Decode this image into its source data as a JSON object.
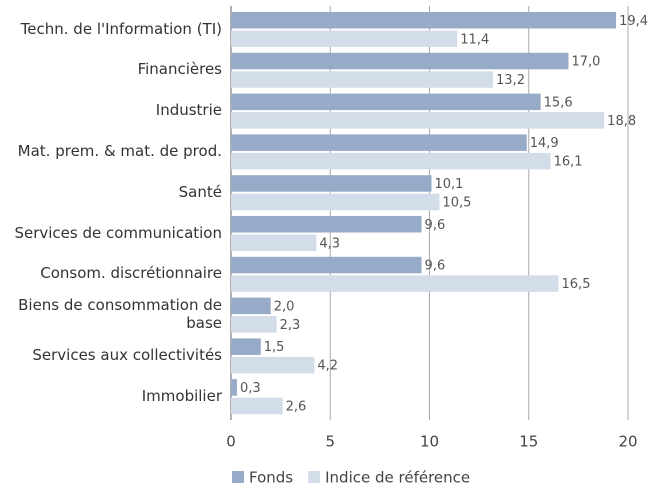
{
  "chart_data": {
    "type": "bar",
    "orientation": "horizontal",
    "categories": [
      "Techn. de l'Information (TI)",
      "Financières",
      "Industrie",
      "Mat. prem. & mat. de prod.",
      "Santé",
      "Services de communication",
      "Consom. discrétionnaire",
      "Biens de consommation de base",
      "Services aux collectivités",
      "Immobilier"
    ],
    "series": [
      {
        "name": "Fonds",
        "color": "#97abc8",
        "values": [
          19.4,
          17.0,
          15.6,
          14.9,
          10.1,
          9.6,
          9.6,
          2.0,
          1.5,
          0.3
        ],
        "value_labels": [
          "19,4",
          "17,0",
          "15,6",
          "14,9",
          "10,1",
          "9,6",
          "9,6",
          "2,0",
          "1,5",
          "0,3"
        ]
      },
      {
        "name": "Indice de référence",
        "color": "#d3dde9",
        "values": [
          11.4,
          13.2,
          18.8,
          16.1,
          10.5,
          4.3,
          16.5,
          2.3,
          4.2,
          2.6
        ],
        "value_labels": [
          "11,4",
          "13,2",
          "18,8",
          "16,1",
          "10,5",
          "4,3",
          "16,5",
          "2,3",
          "4,2",
          "2,6"
        ]
      }
    ],
    "xlim": [
      0,
      20
    ],
    "xticks": [
      0,
      5,
      10,
      15,
      20
    ],
    "grid": true,
    "legend": "bottom"
  }
}
